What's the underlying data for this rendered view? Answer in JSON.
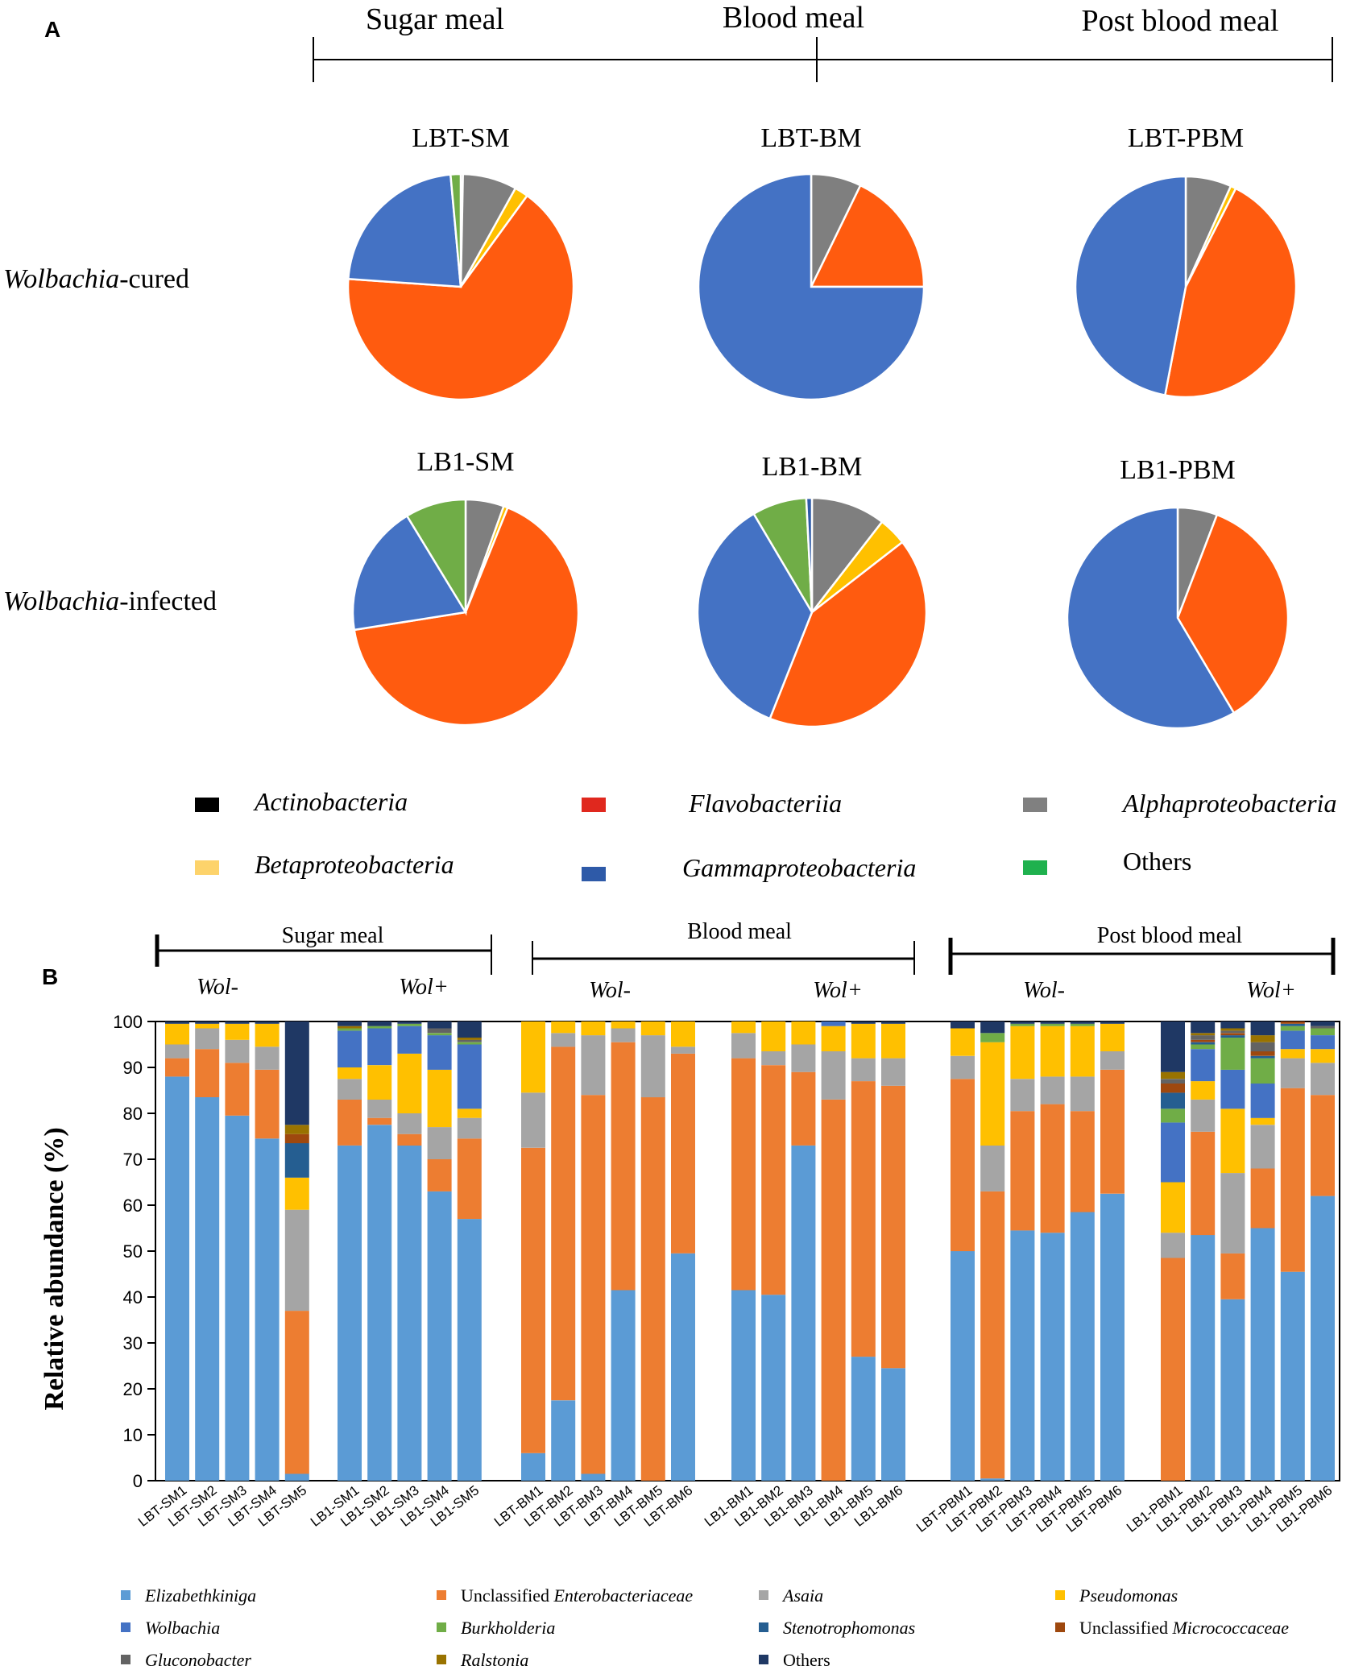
{
  "panel_a": {
    "label": "A",
    "phases": [
      "Sugar meal",
      "Blood meal",
      "Post blood meal"
    ],
    "row_labels": [
      {
        "italic": "Wolbachia",
        "rest": "-cured"
      },
      {
        "italic": "Wolbachia",
        "rest": "-infected"
      }
    ],
    "legend": [
      {
        "name": "Actinobacteria",
        "color": "#000000",
        "italic": true
      },
      {
        "name": "Flavobacteriia",
        "color": "#e0281e",
        "italic": true
      },
      {
        "name": "Alphaproteobacteria",
        "color": "#808080",
        "italic": true
      },
      {
        "name": "Betaproteobacteria",
        "color": "#fdd36b",
        "italic": true
      },
      {
        "name": "Gammaproteobacteria",
        "color": "#2e5aa8",
        "italic": true
      },
      {
        "name": "Others",
        "color": "#1fb14e",
        "italic": false
      }
    ]
  },
  "panel_b": {
    "label": "B",
    "phases": [
      "Sugar meal",
      "Blood meal",
      "Post blood meal"
    ],
    "groups": [
      "Wol-",
      "Wol+"
    ],
    "legend": [
      {
        "name": "Elizabethkiniga",
        "prefix": "",
        "color": "#5b9bd5",
        "italic": true
      },
      {
        "name": "Enterobacteriaceae",
        "prefix": "Unclassified ",
        "color": "#ed7d31",
        "italic": true
      },
      {
        "name": "Asaia",
        "prefix": "",
        "color": "#a5a5a5",
        "italic": true
      },
      {
        "name": "Pseudomonas",
        "prefix": "",
        "color": "#ffc000",
        "italic": true
      },
      {
        "name": "Wolbachia",
        "prefix": "",
        "color": "#4472c4",
        "italic": true
      },
      {
        "name": "Burkholderia",
        "prefix": "",
        "color": "#70ad47",
        "italic": true
      },
      {
        "name": "Stenotrophomonas",
        "prefix": "",
        "color": "#255e91",
        "italic": true
      },
      {
        "name": "Micrococcaceae",
        "prefix": "Unclassified ",
        "color": "#9e480e",
        "italic": true
      },
      {
        "name": "Gluconobacter",
        "prefix": "",
        "color": "#636363",
        "italic": true
      },
      {
        "name": "Ralstonia",
        "prefix": "",
        "color": "#997300",
        "italic": true
      },
      {
        "name": "Others",
        "prefix": "",
        "color": "#1f3864",
        "italic": false
      }
    ]
  },
  "chart_data": [
    {
      "type": "pie",
      "title": "LBT-SM",
      "labels": [
        "Actinobacteria",
        "Alphaproteobacteria",
        "Betaproteobacteria",
        "Gammaproteobacteria (orange)",
        "Gammaproteobacteria",
        "Others"
      ],
      "colors": [
        "#000000",
        "#7f7f7f",
        "#ffc000",
        "#ff5b0f",
        "#4472c4",
        "#70ad47"
      ],
      "values": [
        0.3,
        7.5,
        1.9,
        63.9,
        21.7,
        1.4
      ]
    },
    {
      "type": "pie",
      "title": "LBT-BM",
      "labels": [
        "Alphaproteobacteria",
        "Gammaproteobacteria (orange)",
        "Gammaproteobacteria"
      ],
      "colors": [
        "#7f7f7f",
        "#ff5b0f",
        "#4472c4"
      ],
      "values": [
        7.2,
        17.8,
        75.0
      ]
    },
    {
      "type": "pie",
      "title": "LBT-PBM",
      "labels": [
        "Alphaproteobacteria",
        "Betaproteobacteria",
        "Gammaproteobacteria (orange)",
        "Gammaproteobacteria"
      ],
      "colors": [
        "#7f7f7f",
        "#ffc000",
        "#ff5b0f",
        "#4472c4"
      ],
      "values": [
        6.7,
        0.8,
        45.5,
        47.0
      ]
    },
    {
      "type": "pie",
      "title": "LB1-SM",
      "labels": [
        "Alphaproteobacteria",
        "Betaproteobacteria",
        "Gammaproteobacteria (orange)",
        "Gammaproteobacteria",
        "Others"
      ],
      "colors": [
        "#7f7f7f",
        "#ffc000",
        "#ff5b0f",
        "#4472c4",
        "#70ad47"
      ],
      "values": [
        5.5,
        0.6,
        66.4,
        18.8,
        8.7
      ]
    },
    {
      "type": "pie",
      "title": "LB1-BM",
      "labels": [
        "Alphaproteobacteria",
        "Betaproteobacteria",
        "Gammaproteobacteria (orange)",
        "Gammaproteobacteria",
        "Others",
        "Flavobacteriia (blue)"
      ],
      "colors": [
        "#7f7f7f",
        "#ffc000",
        "#ff5b0f",
        "#4472c4",
        "#70ad47",
        "#2e5aa8"
      ],
      "values": [
        10.5,
        4.0,
        41.5,
        35.5,
        7.7,
        0.8
      ]
    },
    {
      "type": "pie",
      "title": "LB1-PBM",
      "labels": [
        "Alphaproteobacteria",
        "Gammaproteobacteria (orange)",
        "Gammaproteobacteria"
      ],
      "colors": [
        "#7f7f7f",
        "#ff5b0f",
        "#4472c4"
      ],
      "values": [
        5.8,
        35.7,
        58.5
      ]
    },
    {
      "type": "bar",
      "stacked": true,
      "ylabel": "Relative abundance (%)",
      "ylim": [
        0,
        100
      ],
      "yticks": [
        0,
        10,
        20,
        30,
        40,
        50,
        60,
        70,
        80,
        90,
        100
      ],
      "series_order": [
        "Elizabethkiniga",
        "Unclassified Enterobacteriaceae",
        "Asaia",
        "Pseudomonas",
        "Wolbachia",
        "Burkholderia",
        "Stenotrophomonas",
        "Unclassified Micrococcaceae",
        "Gluconobacter",
        "Ralstonia",
        "Others"
      ],
      "bar_groups": [
        [
          {
            "label": "LBT-SM1",
            "values": [
              88,
              4,
              3,
              4.5,
              0,
              0,
              0,
              0,
              0,
              0,
              0.5
            ]
          },
          {
            "label": "LBT-SM2",
            "values": [
              83.5,
              10.5,
              4.5,
              1,
              0,
              0,
              0,
              0,
              0,
              0,
              0.5
            ]
          },
          {
            "label": "LBT-SM3",
            "values": [
              79.5,
              11.5,
              5,
              3.5,
              0,
              0,
              0,
              0,
              0,
              0,
              0.5
            ]
          },
          {
            "label": "LBT-SM4",
            "values": [
              74.5,
              15,
              5,
              5,
              0,
              0,
              0,
              0,
              0,
              0,
              0.5
            ]
          },
          {
            "label": "LBT-SM5",
            "values": [
              1.5,
              35.5,
              22,
              7,
              0,
              0,
              7.5,
              2,
              0,
              2,
              22.5
            ]
          }
        ],
        [
          {
            "label": "LB1-SM1",
            "values": [
              73,
              10,
              4.5,
              2.5,
              8,
              0.5,
              0,
              0,
              0,
              0.5,
              1
            ]
          },
          {
            "label": "LB1-SM2",
            "values": [
              77.5,
              1.5,
              4,
              7.5,
              8,
              0.5,
              0,
              0,
              0,
              0,
              1
            ]
          },
          {
            "label": "LB1-SM3",
            "values": [
              73,
              2.5,
              4.5,
              13,
              6,
              0.5,
              0,
              0,
              0,
              0,
              0.5
            ]
          },
          {
            "label": "LB1-SM4",
            "values": [
              63,
              7,
              7,
              12.5,
              7.5,
              0.5,
              0,
              0,
              1,
              0,
              1.5
            ]
          },
          {
            "label": "LB1-SM5",
            "values": [
              57,
              17.5,
              4.5,
              2,
              14,
              0.5,
              0,
              0,
              0.5,
              0.5,
              3.5
            ]
          }
        ],
        [
          {
            "label": "LBT-BM1",
            "values": [
              6,
              66.5,
              12,
              15.5,
              0,
              0,
              0,
              0,
              0,
              0,
              0
            ]
          },
          {
            "label": "LBT-BM2",
            "values": [
              17.5,
              77,
              3,
              2.5,
              0,
              0,
              0,
              0,
              0,
              0,
              0
            ]
          },
          {
            "label": "LBT-BM3",
            "values": [
              1.5,
              82.5,
              13,
              3,
              0,
              0,
              0,
              0,
              0,
              0,
              0
            ]
          },
          {
            "label": "LBT-BM4",
            "values": [
              41.5,
              54,
              3,
              1.5,
              0,
              0,
              0,
              0,
              0,
              0,
              0
            ]
          },
          {
            "label": "LBT-BM5",
            "values": [
              0,
              83.5,
              13.5,
              3,
              0,
              0,
              0,
              0,
              0,
              0,
              0
            ]
          },
          {
            "label": "LBT-BM6",
            "values": [
              49.5,
              43.5,
              1.5,
              5.5,
              0,
              0,
              0,
              0,
              0,
              0,
              0
            ]
          }
        ],
        [
          {
            "label": "LB1-BM1",
            "values": [
              41.5,
              50.5,
              5.5,
              2.5,
              0,
              0,
              0,
              0,
              0,
              0,
              0
            ]
          },
          {
            "label": "LB1-BM2",
            "values": [
              40.5,
              50,
              3,
              6.5,
              0,
              0,
              0,
              0,
              0,
              0,
              0
            ]
          },
          {
            "label": "LB1-BM3",
            "values": [
              73,
              16,
              6,
              5,
              0,
              0,
              0,
              0,
              0,
              0,
              0
            ]
          },
          {
            "label": "LB1-BM4",
            "values": [
              0,
              83,
              10.5,
              5.5,
              1,
              0,
              0,
              0,
              0,
              0,
              0
            ]
          },
          {
            "label": "LB1-BM5",
            "values": [
              27,
              60,
              5,
              7.5,
              0,
              0,
              0,
              0,
              0,
              0,
              0.5
            ]
          },
          {
            "label": "LB1-BM6",
            "values": [
              24.5,
              61.5,
              6,
              7.5,
              0,
              0,
              0,
              0,
              0,
              0,
              0.5
            ]
          }
        ],
        [
          {
            "label": "LBT-PBM1",
            "values": [
              50,
              37.5,
              5,
              6,
              0,
              0,
              0,
              0,
              0,
              0,
              1.5
            ]
          },
          {
            "label": "LBT-PBM2",
            "values": [
              0.5,
              62.5,
              10,
              22.5,
              0,
              2,
              0,
              0,
              0,
              0,
              2.5
            ]
          },
          {
            "label": "LBT-PBM3",
            "values": [
              54.5,
              26,
              7,
              11.5,
              0,
              0.5,
              0,
              0,
              0,
              0,
              0.5
            ]
          },
          {
            "label": "LBT-PBM4",
            "values": [
              54,
              28,
              6,
              11,
              0,
              0.5,
              0,
              0,
              0,
              0,
              0.5
            ]
          },
          {
            "label": "LBT-PBM5",
            "values": [
              58.5,
              22,
              7.5,
              11,
              0,
              0.5,
              0,
              0,
              0,
              0,
              0.5
            ]
          },
          {
            "label": "LBT-PBM6",
            "values": [
              62.5,
              27,
              4,
              6,
              0,
              0,
              0,
              0,
              0,
              0,
              0.5
            ]
          }
        ],
        [
          {
            "label": "LB1-PBM1",
            "values": [
              0,
              48.5,
              5.5,
              11,
              13,
              3,
              3.5,
              2,
              1,
              1.5,
              11
            ]
          },
          {
            "label": "LB1-PBM2",
            "values": [
              53.5,
              22.5,
              7,
              4,
              7,
              1,
              0.5,
              0.5,
              1,
              0.5,
              2.5
            ]
          },
          {
            "label": "LB1-PBM3",
            "values": [
              39.5,
              10,
              17.5,
              14,
              8.5,
              7,
              0.5,
              0.5,
              0.5,
              0.5,
              1.5
            ]
          },
          {
            "label": "LB1-PBM4",
            "values": [
              55,
              13,
              9.5,
              1.5,
              7.5,
              5.5,
              0.5,
              1,
              2,
              1.5,
              3
            ]
          },
          {
            "label": "LB1-PBM5",
            "values": [
              45.5,
              40,
              6.5,
              2,
              4,
              1,
              0.5,
              0.5,
              0,
              0,
              0
            ]
          },
          {
            "label": "LB1-PBM6",
            "values": [
              62,
              22,
              7,
              3,
              3,
              1.5,
              0,
              0,
              0.5,
              0,
              1
            ]
          }
        ]
      ]
    }
  ]
}
